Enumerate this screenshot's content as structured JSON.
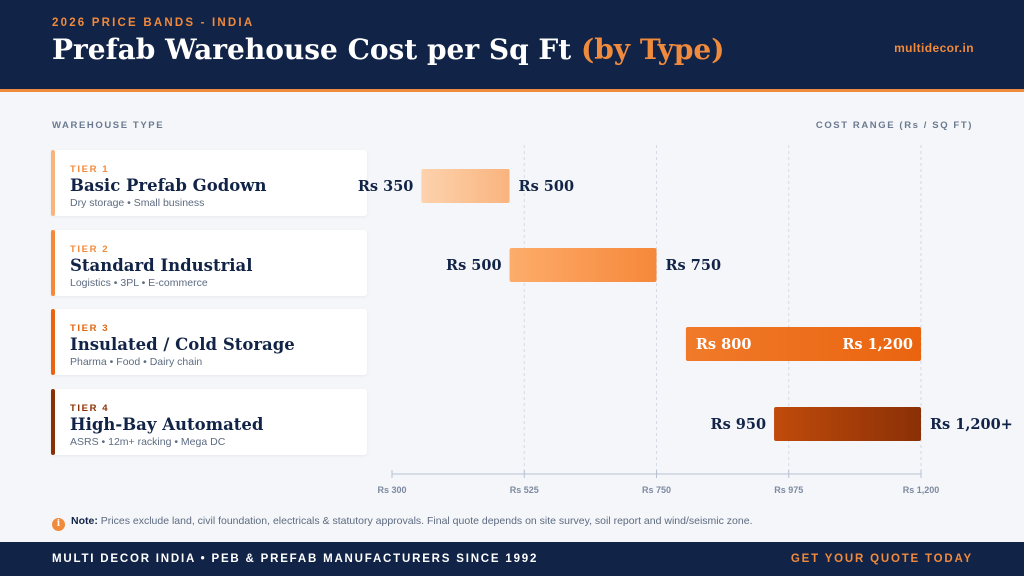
{
  "header": {
    "eyebrow": "2026 PRICE BANDS - INDIA",
    "title_main": "Prefab Warehouse Cost per Sq Ft",
    "title_accent": "(by Type)",
    "site": "multidecor.in"
  },
  "columns": {
    "left": "WAREHOUSE TYPE",
    "right": "COST RANGE (Rs / SQ FT)"
  },
  "colors": {
    "navy": "#112347",
    "accent": "#f08a3c",
    "tier1": [
      "#fdd2ad",
      "#f9b47e"
    ],
    "tier2": [
      "#fdac6b",
      "#f6883a"
    ],
    "tier3": [
      "#f07a2a",
      "#ea640f"
    ],
    "tier4": [
      "#c04b0b",
      "#8a3006"
    ]
  },
  "tiers": [
    {
      "tier": "TIER 1",
      "name": "Basic Prefab Godown",
      "sub": "Dry storage • Small business",
      "color": "#f9b47e",
      "tier_color": "#f08a3c"
    },
    {
      "tier": "TIER 2",
      "name": "Standard Industrial",
      "sub": "Logistics • 3PL • E-commerce",
      "color": "#f6883a",
      "tier_color": "#f08a3c"
    },
    {
      "tier": "TIER 3",
      "name": "Insulated / Cold Storage",
      "sub": "Pharma • Food • Dairy chain",
      "color": "#ea640f",
      "tier_color": "#e0650f"
    },
    {
      "tier": "TIER 4",
      "name": "High-Bay Automated",
      "sub": "ASRS • 12m+ racking • Mega DC",
      "color": "#8a3006",
      "tier_color": "#8a3006"
    }
  ],
  "chart_data": {
    "type": "bar",
    "orientation": "horizontal-range",
    "categories": [
      "Basic Prefab Godown",
      "Standard Industrial",
      "Insulated / Cold Storage",
      "High-Bay Automated"
    ],
    "ranges": [
      [
        350,
        500
      ],
      [
        500,
        750
      ],
      [
        800,
        1200
      ],
      [
        950,
        1200
      ]
    ],
    "low_labels": [
      "Rs 350",
      "Rs 500",
      "Rs 800",
      "Rs 950"
    ],
    "high_labels": [
      "Rs 500",
      "Rs 750",
      "Rs 1,200",
      "Rs 1,200+"
    ],
    "label_inside": [
      false,
      false,
      true,
      false
    ],
    "xlim": [
      300,
      1200
    ],
    "xticks": [
      300,
      525,
      750,
      975,
      1200
    ],
    "xtick_labels": [
      "Rs 300",
      "Rs 525",
      "Rs 750",
      "Rs 975",
      "Rs 1,200"
    ],
    "grid": "vertical dashed",
    "xlabel": "COST RANGE (Rs / SQ FT)",
    "ylabel": "WAREHOUSE TYPE"
  },
  "note": {
    "label": "Note:",
    "text": "Prices exclude land, civil foundation, electricals & statutory approvals. Final quote depends on site survey, soil report and wind/seismic zone."
  },
  "footer": {
    "left": "MULTI DECOR INDIA • PEB & PREFAB MANUFACTURERS SINCE 1992",
    "right": "GET YOUR QUOTE TODAY"
  }
}
